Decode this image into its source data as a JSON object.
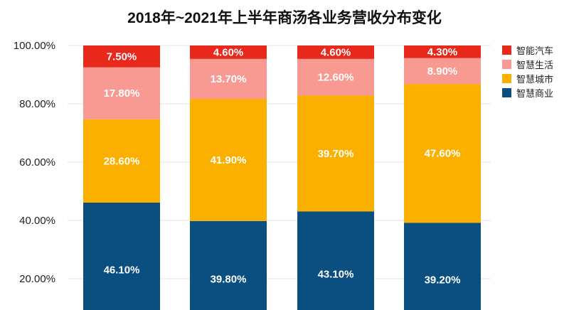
{
  "chart_data": {
    "type": "bar",
    "stacked": true,
    "title": "2018年~2021年上半年商汤各业务营收分布变化",
    "xlabel": "",
    "ylabel": "",
    "ylim": [
      0,
      100
    ],
    "yticks": [
      "20.00%",
      "40.00%",
      "60.00%",
      "80.00%",
      "100.00%"
    ],
    "grid": true,
    "legend_position": "right",
    "series": [
      {
        "name": "智慧商业",
        "color": "#0b4f80",
        "values": [
          46.1,
          39.8,
          43.1,
          39.2
        ],
        "labels": [
          "46.10%",
          "39.80%",
          "43.10%",
          "39.20%"
        ]
      },
      {
        "name": "智慧城市",
        "color": "#fbb000",
        "values": [
          28.6,
          41.9,
          39.7,
          47.6
        ],
        "labels": [
          "28.60%",
          "41.90%",
          "39.70%",
          "47.60%"
        ]
      },
      {
        "name": "智慧生活",
        "color": "#f99a92",
        "values": [
          17.8,
          13.7,
          12.6,
          8.9
        ],
        "labels": [
          "17.80%",
          "13.70%",
          "12.60%",
          "8.90%"
        ]
      },
      {
        "name": "智能汽车",
        "color": "#e8281b",
        "values": [
          7.5,
          4.6,
          4.6,
          4.3
        ],
        "labels": [
          "7.50%",
          "4.60%",
          "4.60%",
          "4.30%"
        ]
      }
    ],
    "legend_order": [
      "智能汽车",
      "智慧生活",
      "智慧城市",
      "智慧商业"
    ]
  }
}
